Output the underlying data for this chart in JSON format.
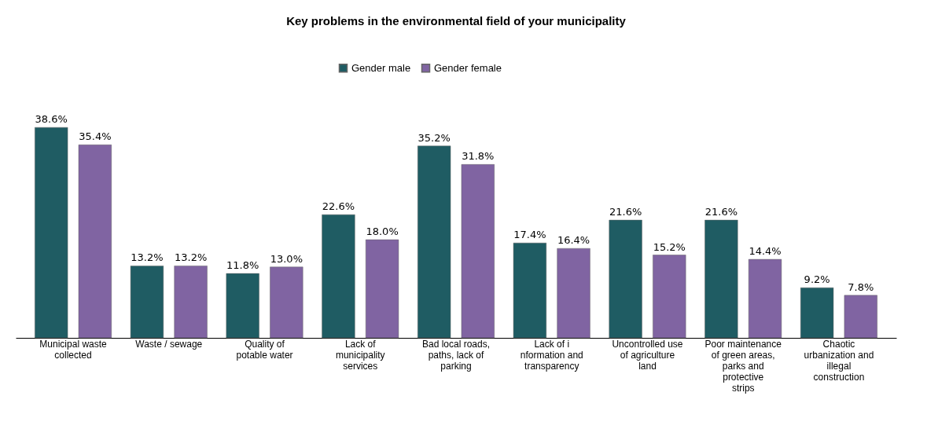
{
  "chart_data": {
    "type": "bar",
    "title": "Key problems in the environmental field of your municipality",
    "categories": [
      "Municipal waste collected",
      "Waste / sewage",
      "Quality of potable water",
      "Lack of municipality services",
      "Bad local roads, paths, lack of parking",
      "Lack of i nformation and transparency",
      "Uncontrolled use of agriculture land",
      "Poor maintenance of green areas, parks and protective strips",
      "Chaotic urbanization and illegal construction"
    ],
    "series": [
      {
        "name": "Gender male",
        "color": "#1f5c63",
        "values": [
          38.6,
          13.2,
          11.8,
          22.6,
          35.2,
          17.4,
          21.6,
          21.6,
          9.2
        ],
        "value_labels": [
          "38.6%",
          "13.2%",
          "11.8%",
          "22.6%",
          "35.2%",
          "17.4%",
          "21.6%",
          "21.6%",
          "9.2%"
        ]
      },
      {
        "name": "Gender female",
        "color": "#8064a2",
        "values": [
          35.4,
          13.2,
          13.0,
          18.0,
          31.8,
          16.4,
          15.2,
          14.4,
          7.8
        ],
        "value_labels": [
          "35.4%",
          "13.2%",
          "13.0%",
          "18.0%",
          "31.8%",
          "16.4%",
          "15.2%",
          "14.4%",
          "7.8%"
        ]
      }
    ],
    "legend": "top",
    "grid": false
  }
}
